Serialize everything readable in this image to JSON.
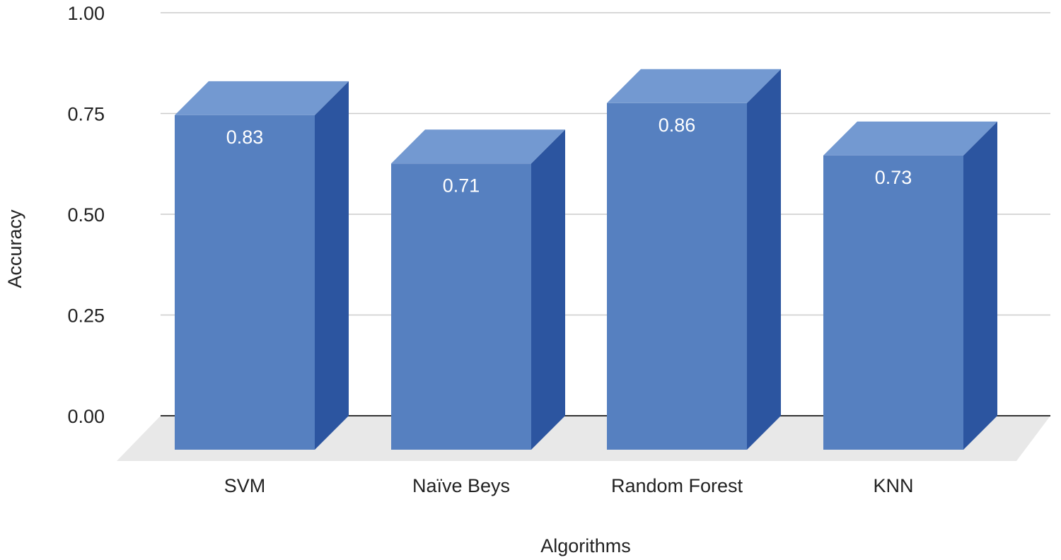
{
  "chart_data": {
    "type": "bar",
    "style": "3d",
    "title": "",
    "xlabel": "Algorithms",
    "ylabel": "Accuracy",
    "categories": [
      "SVM",
      "Naïve Beys",
      "Random Forest",
      "KNN"
    ],
    "values": [
      0.83,
      0.71,
      0.86,
      0.73
    ],
    "data_labels": [
      "0.83",
      "0.71",
      "0.86",
      "0.73"
    ],
    "yticks": [
      "0.00",
      "0.25",
      "0.50",
      "0.75",
      "1.00"
    ],
    "ylim": [
      0,
      1
    ],
    "grid": true,
    "legend": "none"
  },
  "colors": {
    "bar_front": "#5680c0",
    "bar_top": "#7399d1",
    "bar_side": "#2c55a0",
    "floor": "#e8e8e8",
    "gridline": "#cccccc",
    "baseline": "#333333",
    "text": "#222222",
    "data_label": "#ffffff"
  }
}
